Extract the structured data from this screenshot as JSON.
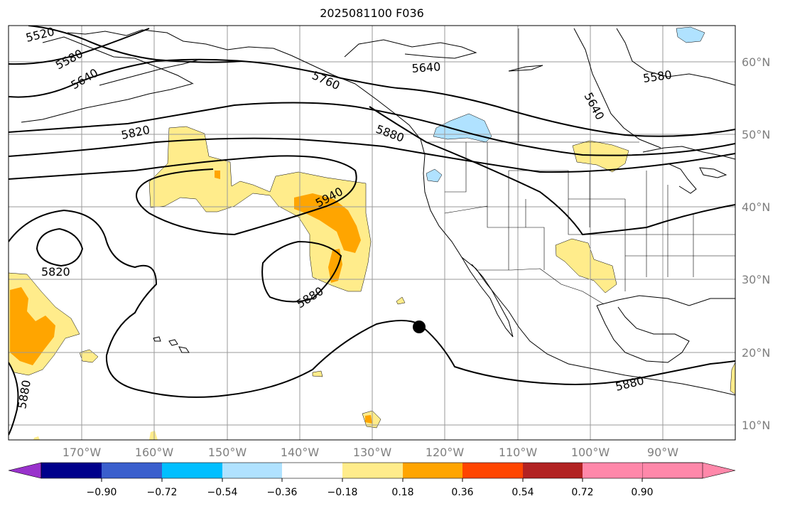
{
  "title": "2025081100 F036",
  "map": {
    "projection": "PlateCarree",
    "lon_range": [
      -180,
      -80
    ],
    "lat_range": [
      7,
      64
    ],
    "gridlines": true,
    "lon_ticks": [
      "170°W",
      "160°W",
      "150°W",
      "140°W",
      "130°W",
      "120°W",
      "110°W",
      "100°W",
      "90°W"
    ],
    "lat_ticks": [
      "10°N",
      "20°N",
      "30°N",
      "40°N",
      "50°N",
      "60°N"
    ],
    "contour_labels": [
      "5520",
      "5580",
      "5640",
      "5820",
      "5760",
      "5880",
      "5640",
      "5580",
      "5640",
      "5940",
      "5820",
      "5880",
      "5880",
      "5880"
    ],
    "marker": "storm-center-dot"
  },
  "colorbar": {
    "colors": [
      "#9932cc",
      "#00008b",
      "#3a5fcd",
      "#00bfff",
      "#b0e2ff",
      "#ffffff",
      "#ffec8b",
      "#ffa500",
      "#ff4500",
      "#b22222",
      "#ff88aa"
    ],
    "ticks": [
      "−0.90",
      "−0.72",
      "−0.54",
      "−0.36",
      "−0.18",
      "0.18",
      "0.36",
      "0.54",
      "0.72",
      "0.90"
    ]
  },
  "colors": {
    "land_outline": "#000000",
    "gridline": "#9a9a9a",
    "contour": "#000000",
    "pos_low": "#ffec8b",
    "pos_mid": "#ffa500",
    "neg_low": "#b0e2ff"
  }
}
